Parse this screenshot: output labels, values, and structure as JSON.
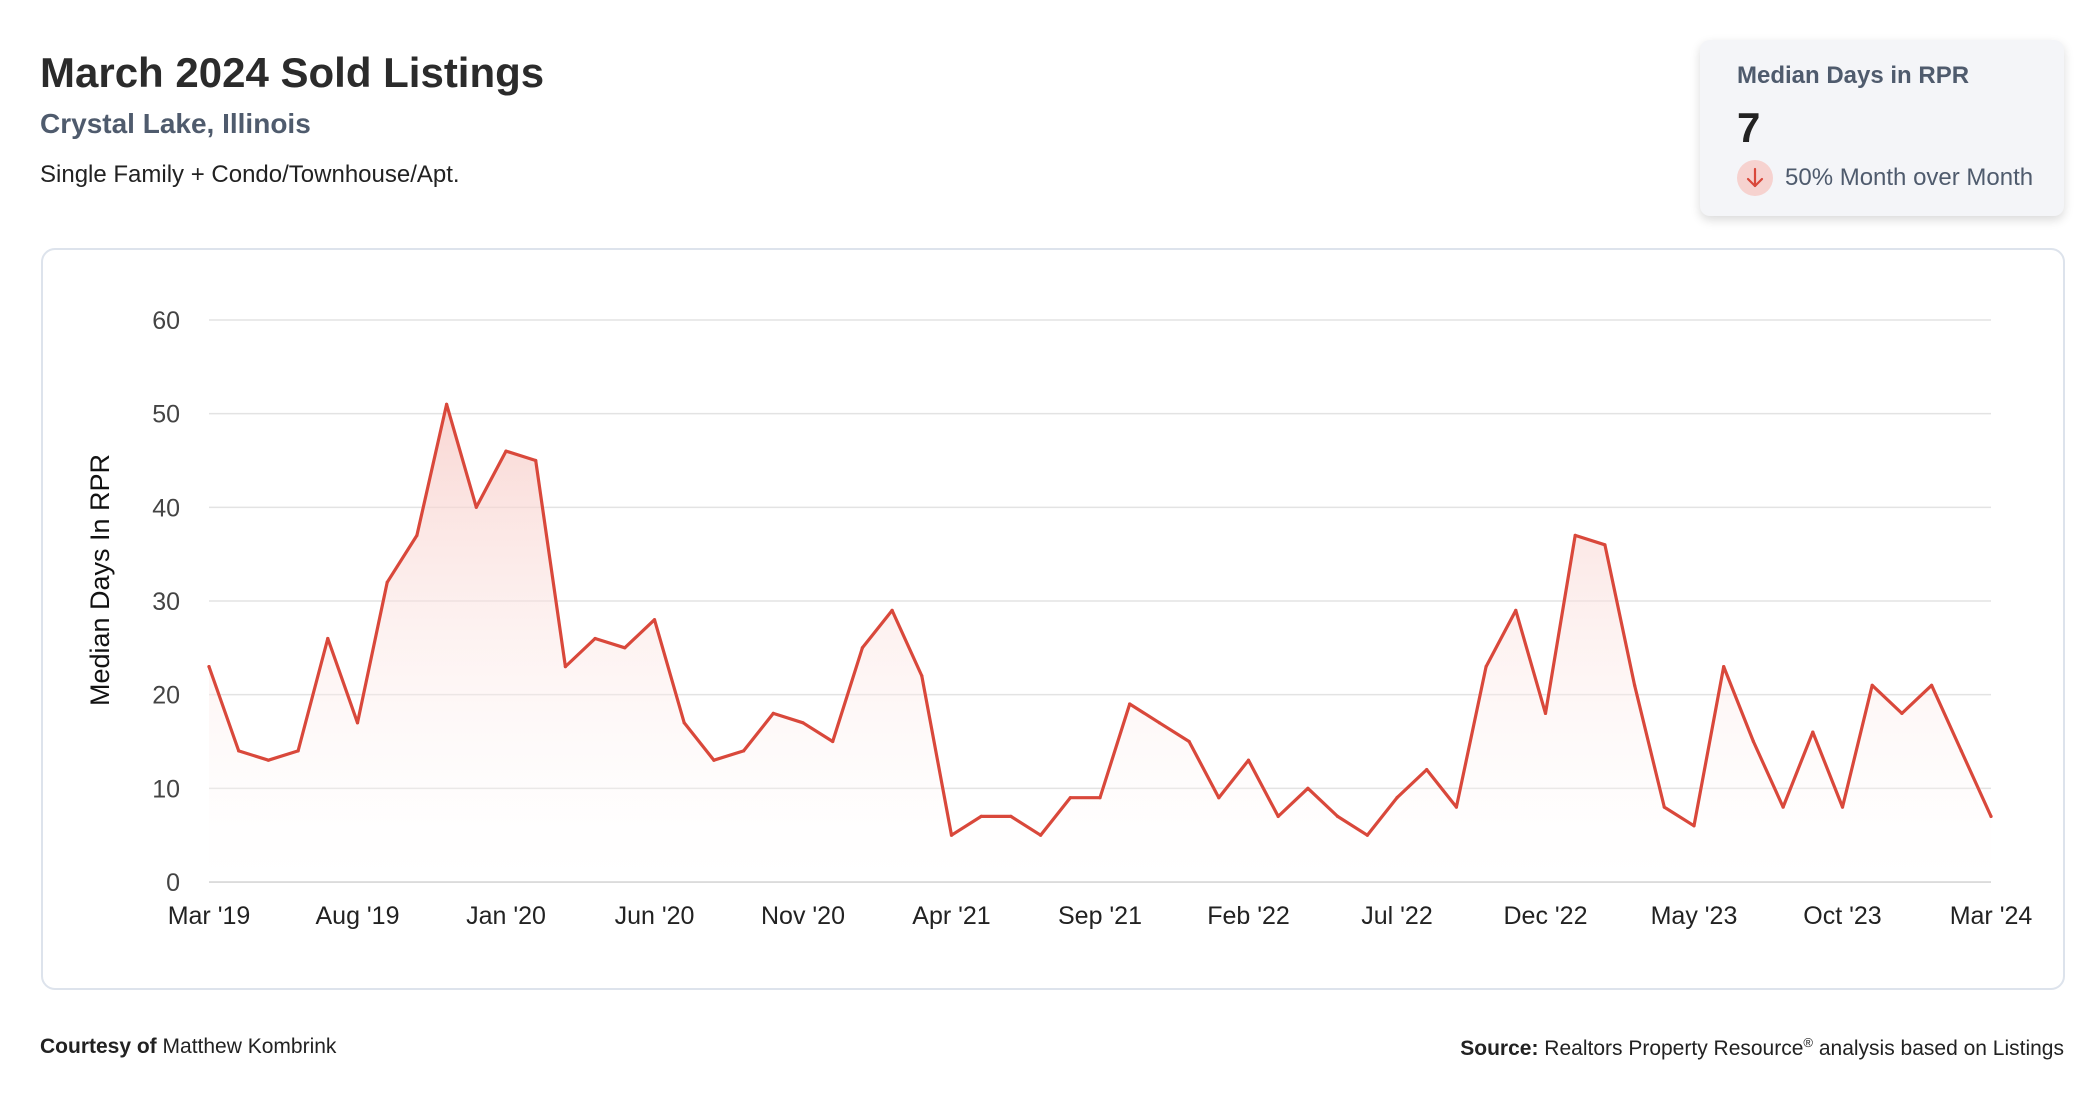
{
  "header": {
    "title": "March 2024 Sold Listings",
    "location": "Crystal Lake, Illinois",
    "subtitle": "Single Family + Condo/Townhouse/Apt."
  },
  "stat_card": {
    "label": "Median Days in RPR",
    "value": "7",
    "change": "50% Month over Month",
    "direction_icon": "arrow-down-icon"
  },
  "footer": {
    "courtesy_label": "Courtesy of",
    "courtesy_name": "Matthew Kombrink",
    "source_label": "Source:",
    "source_text_1": "Realtors Property Resource",
    "source_sup": "®",
    "source_text_2": " analysis based on Listings"
  },
  "colors": {
    "line": "#d9483b",
    "fill_top": "#f7c9c4",
    "grid": "#e3e3e3",
    "accent_text": "#4f5b6d"
  },
  "chart_data": {
    "type": "area",
    "ylabel": "Median Days In RPR",
    "xlabel": "",
    "ylim": [
      0,
      60
    ],
    "yticks": [
      0,
      10,
      20,
      30,
      40,
      50,
      60
    ],
    "xtick_labels": [
      "Mar '19",
      "Aug '19",
      "Jan '20",
      "Jun '20",
      "Nov '20",
      "Apr '21",
      "Sep '21",
      "Feb '22",
      "Jul '22",
      "Dec '22",
      "May '23",
      "Oct '23",
      "Mar '24"
    ],
    "grid": true,
    "x": [
      "2019-03",
      "2019-04",
      "2019-05",
      "2019-06",
      "2019-07",
      "2019-08",
      "2019-09",
      "2019-10",
      "2019-11",
      "2019-12",
      "2020-01",
      "2020-02",
      "2020-03",
      "2020-04",
      "2020-05",
      "2020-06",
      "2020-07",
      "2020-08",
      "2020-09",
      "2020-10",
      "2020-11",
      "2020-12",
      "2021-01",
      "2021-02",
      "2021-03",
      "2021-04",
      "2021-05",
      "2021-06",
      "2021-07",
      "2021-08",
      "2021-09",
      "2021-10",
      "2021-11",
      "2021-12",
      "2022-01",
      "2022-02",
      "2022-03",
      "2022-04",
      "2022-05",
      "2022-06",
      "2022-07",
      "2022-08",
      "2022-09",
      "2022-10",
      "2022-11",
      "2022-12",
      "2023-01",
      "2023-02",
      "2023-03",
      "2023-04",
      "2023-05",
      "2023-06",
      "2023-07",
      "2023-08",
      "2023-09",
      "2023-10",
      "2023-11",
      "2023-12",
      "2024-01",
      "2024-02",
      "2024-03"
    ],
    "series": [
      {
        "values": [
          23,
          14,
          13,
          14,
          26,
          17,
          32,
          37,
          51,
          40,
          46,
          45,
          23,
          26,
          25,
          28,
          17,
          13,
          14,
          18,
          17,
          15,
          25,
          29,
          22,
          5,
          7,
          7,
          5,
          9,
          9,
          19,
          17,
          15,
          9,
          13,
          7,
          10,
          7,
          5,
          9,
          12,
          8,
          23,
          29,
          18,
          37,
          36,
          21,
          8,
          6,
          23,
          15,
          8,
          16,
          8,
          21,
          18,
          21,
          14,
          7
        ]
      }
    ]
  }
}
